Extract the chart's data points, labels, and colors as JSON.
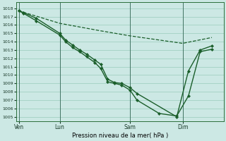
{
  "xlabel": "Pression niveau de la mer( hPa )",
  "bg_color": "#cce8e4",
  "grid_color": "#99ccbb",
  "line_color": "#1a5e2a",
  "ytick_labels": [
    "1005",
    "1006",
    "1007",
    "1008",
    "1009",
    "1010",
    "1011",
    "1012",
    "1013",
    "1014",
    "1015",
    "1016",
    "1017",
    "1018"
  ],
  "ytick_values": [
    1005,
    1006,
    1007,
    1008,
    1009,
    1010,
    1011,
    1012,
    1013,
    1014,
    1015,
    1016,
    1017,
    1018
  ],
  "ylim": [
    1004.5,
    1018.7
  ],
  "xtick_labels": [
    "Ven",
    "Lun",
    "Sam",
    "Dim"
  ],
  "xtick_positions": [
    0.0,
    3.5,
    9.5,
    14.0
  ],
  "xlim": [
    -0.2,
    17.5
  ],
  "vline_positions": [
    0.0,
    3.5,
    9.5,
    14.0
  ],
  "s1_x": [
    0.0,
    0.4,
    1.5,
    3.5,
    4.0,
    4.6,
    5.2,
    5.8,
    6.5,
    7.0,
    7.6,
    8.2,
    8.8,
    9.5,
    10.1,
    13.5,
    14.5,
    15.5,
    16.5
  ],
  "s1_y": [
    1017.7,
    1017.5,
    1016.8,
    1015.0,
    1014.2,
    1013.6,
    1013.0,
    1012.5,
    1011.8,
    1011.3,
    1009.5,
    1009.1,
    1009.0,
    1008.5,
    1007.8,
    1005.0,
    1010.5,
    1013.0,
    1013.5
  ],
  "s2_x": [
    0.0,
    0.4,
    1.5,
    3.5,
    4.0,
    4.6,
    5.2,
    5.8,
    6.5,
    7.0,
    7.6,
    8.2,
    8.8,
    9.5,
    10.1,
    12.0,
    13.5,
    14.5,
    15.5,
    16.5
  ],
  "s2_y": [
    1017.7,
    1017.4,
    1016.5,
    1014.8,
    1014.0,
    1013.3,
    1012.8,
    1012.2,
    1011.5,
    1010.8,
    1009.2,
    1009.0,
    1008.8,
    1008.2,
    1007.0,
    1005.4,
    1005.1,
    1007.5,
    1012.8,
    1013.1
  ],
  "s3_x": [
    0.0,
    3.5,
    7.0,
    9.5,
    12.0,
    14.0,
    16.5
  ],
  "s3_y": [
    1017.7,
    1016.2,
    1015.3,
    1014.7,
    1014.2,
    1013.8,
    1014.5
  ]
}
